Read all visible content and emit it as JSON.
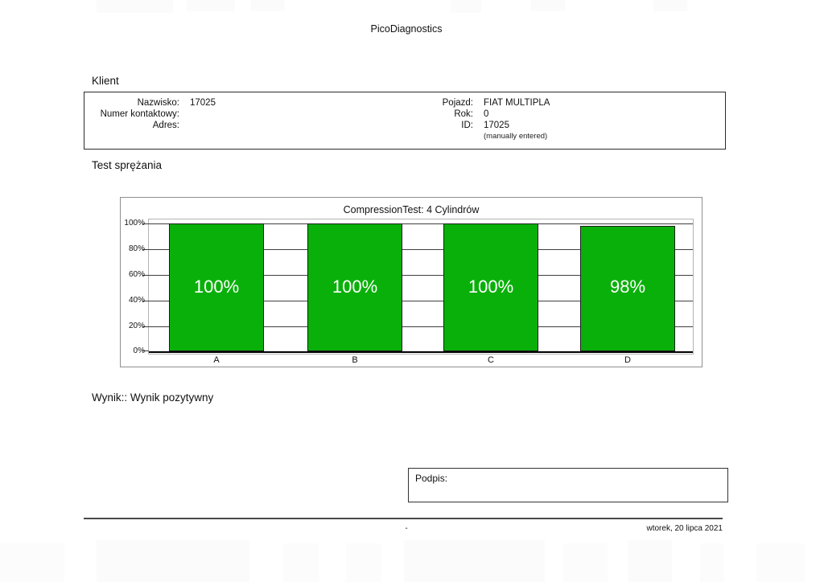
{
  "page": {
    "title": "PicoDiagnostics"
  },
  "client": {
    "heading": "Klient",
    "left": [
      {
        "label": "Nazwisko:",
        "value": "17025"
      },
      {
        "label": "Numer kontaktowy:",
        "value": ""
      },
      {
        "label": "Adres:",
        "value": ""
      }
    ],
    "right": [
      {
        "label": "Pojazd:",
        "value": "FIAT MULTIPLA"
      },
      {
        "label": "Rok:",
        "value": "0"
      },
      {
        "label": "ID:",
        "value": "17025"
      },
      {
        "label": "",
        "value": "(manually entered)"
      }
    ]
  },
  "test": {
    "heading": "Test sprężania"
  },
  "chart_data": {
    "type": "bar",
    "title": "CompressionTest: 4 Cylindrów",
    "categories": [
      "A",
      "B",
      "C",
      "D"
    ],
    "values": [
      100,
      100,
      100,
      98
    ],
    "bar_labels": [
      "100%",
      "100%",
      "100%",
      "98%"
    ],
    "ytick_labels": [
      "100%",
      "80%",
      "60%",
      "40%",
      "20%",
      "0%"
    ],
    "ylim": [
      0,
      100
    ],
    "grid": true,
    "legend": "none",
    "bar_color": "#0ab00a"
  },
  "result": {
    "text": "Wynik:: Wynik pozytywny"
  },
  "signature": {
    "label": "Podpis:"
  },
  "footer": {
    "center": "-",
    "date": "wtorek, 20 lipca 2021"
  }
}
